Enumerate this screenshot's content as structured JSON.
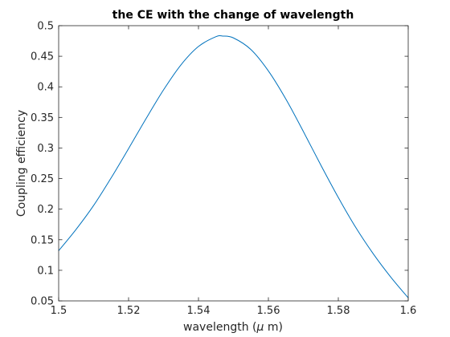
{
  "chart_data": {
    "type": "line",
    "title": "the CE with the change of wavelength",
    "xlabel_prefix": "wavelength (",
    "xlabel_greek": "μ",
    "xlabel_suffix": " m)",
    "ylabel": "Coupling efficiency",
    "xlim": [
      1.5,
      1.6
    ],
    "ylim": [
      0.05,
      0.5
    ],
    "x_ticks": [
      1.5,
      1.52,
      1.54,
      1.56,
      1.58,
      1.6
    ],
    "x_tick_labels": [
      "1.5",
      "1.52",
      "1.54",
      "1.56",
      "1.58",
      "1.6"
    ],
    "y_ticks": [
      0.05,
      0.1,
      0.15,
      0.2,
      0.25,
      0.3,
      0.35,
      0.4,
      0.45,
      0.5
    ],
    "y_tick_labels": [
      "0.05",
      "0.1",
      "0.15",
      "0.2",
      "0.25",
      "0.3",
      "0.35",
      "0.4",
      "0.45",
      "0.5"
    ],
    "grid": false,
    "series": [
      {
        "color": "#0072bd",
        "x": [
          1.5,
          1.505,
          1.51,
          1.515,
          1.52,
          1.525,
          1.53,
          1.535,
          1.54,
          1.545,
          1.547,
          1.55,
          1.555,
          1.56,
          1.565,
          1.57,
          1.575,
          1.58,
          1.585,
          1.59,
          1.595,
          1.6
        ],
        "y": [
          0.132,
          0.167,
          0.206,
          0.251,
          0.299,
          0.348,
          0.395,
          0.436,
          0.466,
          0.482,
          0.483,
          0.48,
          0.461,
          0.426,
          0.38,
          0.327,
          0.272,
          0.219,
          0.17,
          0.127,
          0.089,
          0.055
        ]
      }
    ]
  }
}
